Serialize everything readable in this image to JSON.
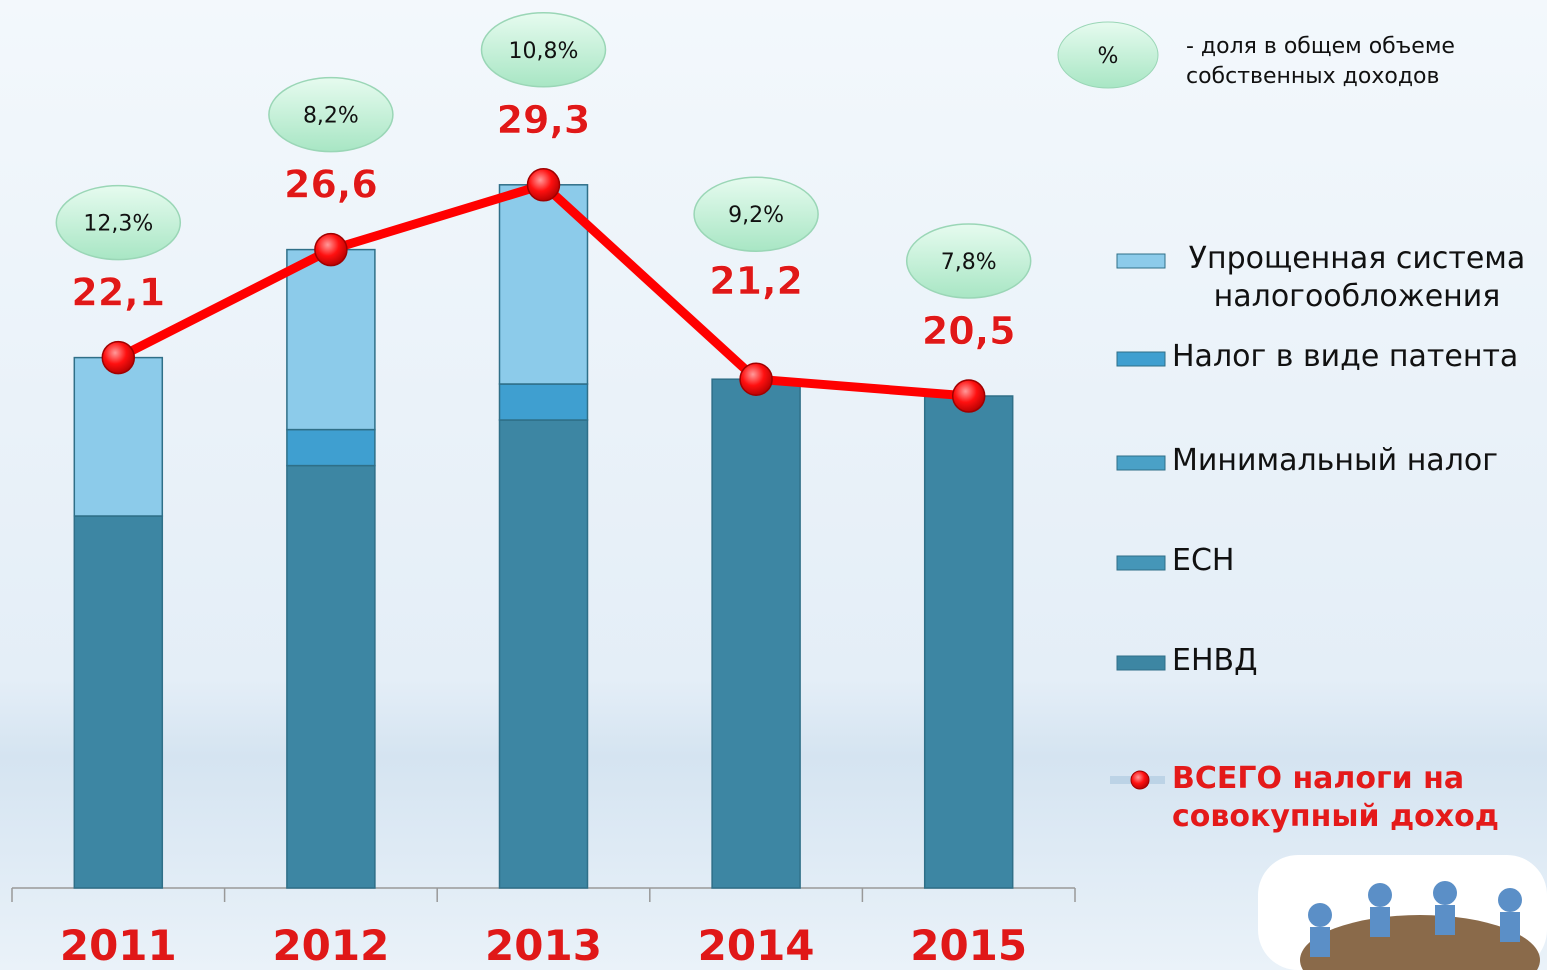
{
  "chart_data": {
    "type": "bar",
    "categories": [
      "2011",
      "2012",
      "2013",
      "2014",
      "2015"
    ],
    "ylim": [
      0,
      37
    ],
    "series": [
      {
        "name": "ЕНВД",
        "color": "#3d86a3",
        "values": [
          15.5,
          17.6,
          19.5,
          21.2,
          20.5
        ]
      },
      {
        "name": "ЕСН",
        "color": "#4596b8",
        "values": [
          null,
          null,
          null,
          null,
          null
        ]
      },
      {
        "name": "Минимальный налог",
        "color": "#4aa1c7",
        "values": [
          null,
          null,
          null,
          null,
          null
        ]
      },
      {
        "name": "Налог в виде патента",
        "color": "#3f9fd0",
        "values": [
          null,
          1.5,
          1.5,
          null,
          null
        ]
      },
      {
        "name": "Упрощенная система налогообложения",
        "color": "#8ccbea",
        "values": [
          6.6,
          7.5,
          8.3,
          null,
          null
        ]
      },
      {
        "name": "ВСЕГО налоги на совокупный доход",
        "type": "line",
        "color": "#ff0000",
        "values": [
          22.1,
          26.6,
          29.3,
          21.2,
          20.5
        ],
        "value_labels": [
          "22,1",
          "26,6",
          "29,3",
          "21,2",
          "20,5"
        ]
      }
    ],
    "shares": {
      "values": [
        12.3,
        8.2,
        10.8,
        9.2,
        7.8
      ],
      "value_labels": [
        "12,3%",
        "8,2%",
        "10,8%",
        "9,2%",
        "7,8%"
      ]
    },
    "share_legend": {
      "symbol": "%",
      "text": "- доля в общем объеме собственных доходов"
    }
  }
}
